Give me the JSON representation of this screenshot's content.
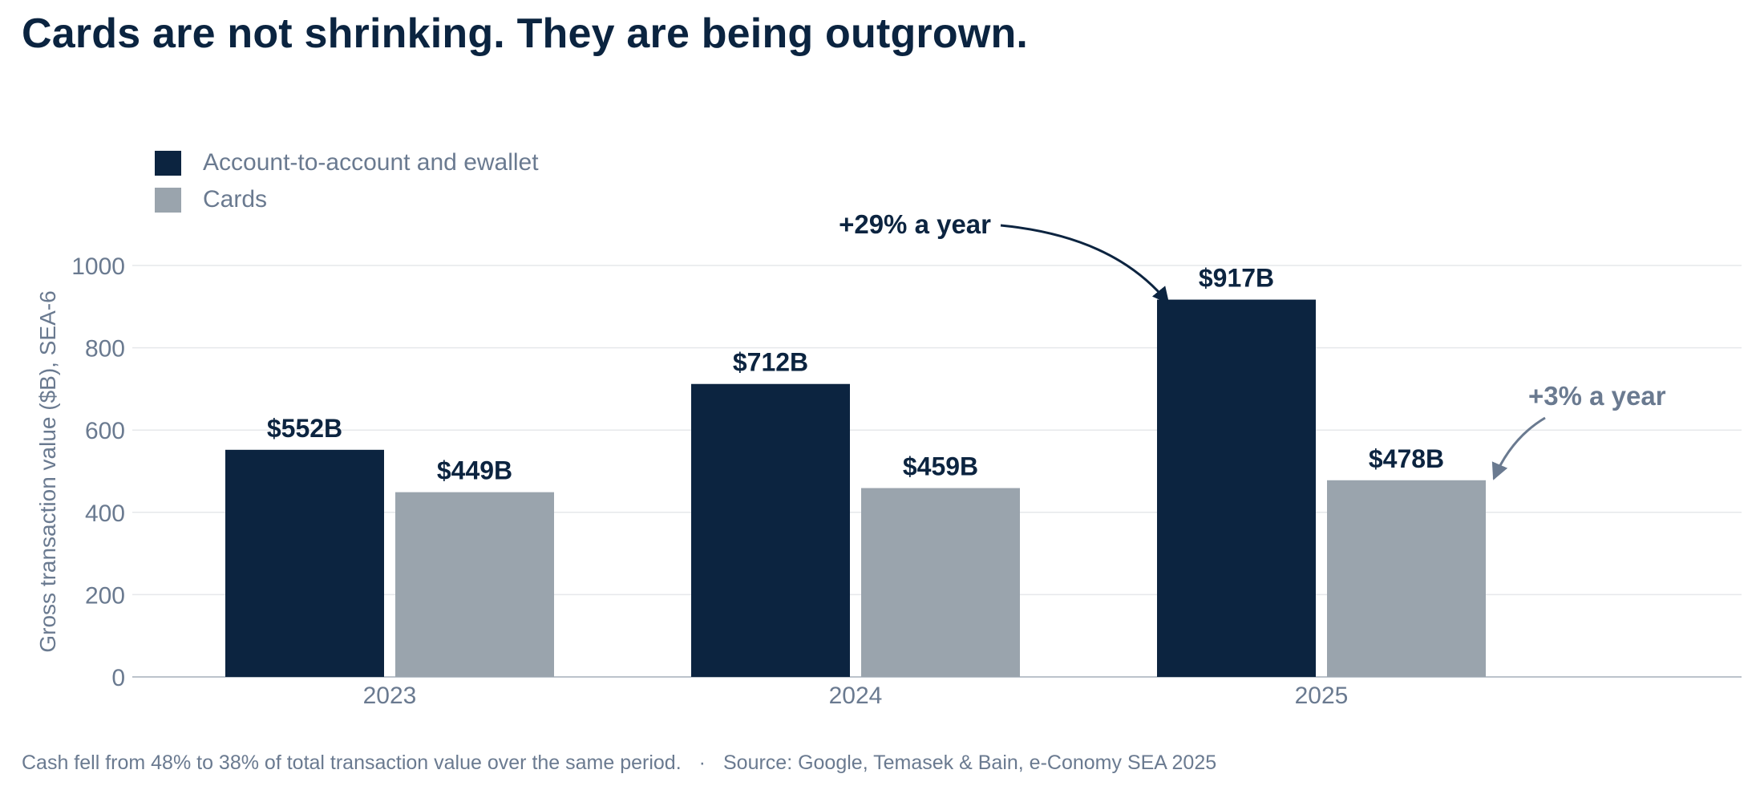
{
  "title": "Cards are not shrinking. They are being outgrown.",
  "legend": [
    {
      "label": "Account-to-account and ewallet",
      "color": "#0c2440"
    },
    {
      "label": "Cards",
      "color": "#9aa4ad"
    }
  ],
  "chart_data": {
    "type": "bar",
    "categories": [
      "2023",
      "2024",
      "2025"
    ],
    "series": [
      {
        "name": "Account-to-account and ewallet",
        "values": [
          552,
          712,
          917
        ],
        "labels": [
          "$552B",
          "$712B",
          "$917B"
        ],
        "color": "#0c2440"
      },
      {
        "name": "Cards",
        "values": [
          449,
          459,
          478
        ],
        "labels": [
          "$449B",
          "$459B",
          "$478B"
        ],
        "color": "#9aa4ad"
      }
    ],
    "ylabel": "Gross transaction value ($B), SEA-6",
    "ylim": [
      0,
      1000
    ],
    "yticks": [
      0,
      200,
      400,
      600,
      800,
      1000
    ],
    "grid": true,
    "legend_position": "top-left",
    "annotations": [
      {
        "text": "+29% a year",
        "series": 0,
        "category": "2025",
        "color": "#0c2440"
      },
      {
        "text": "+3% a year",
        "series": 1,
        "category": "2025",
        "color": "#6a7a90"
      }
    ]
  },
  "footer": {
    "note": "Cash fell from 48% to 38% of total transaction value over the same period.",
    "separator": "·",
    "source": "Source: Google, Temasek & Bain, e-Conomy SEA 2025"
  }
}
